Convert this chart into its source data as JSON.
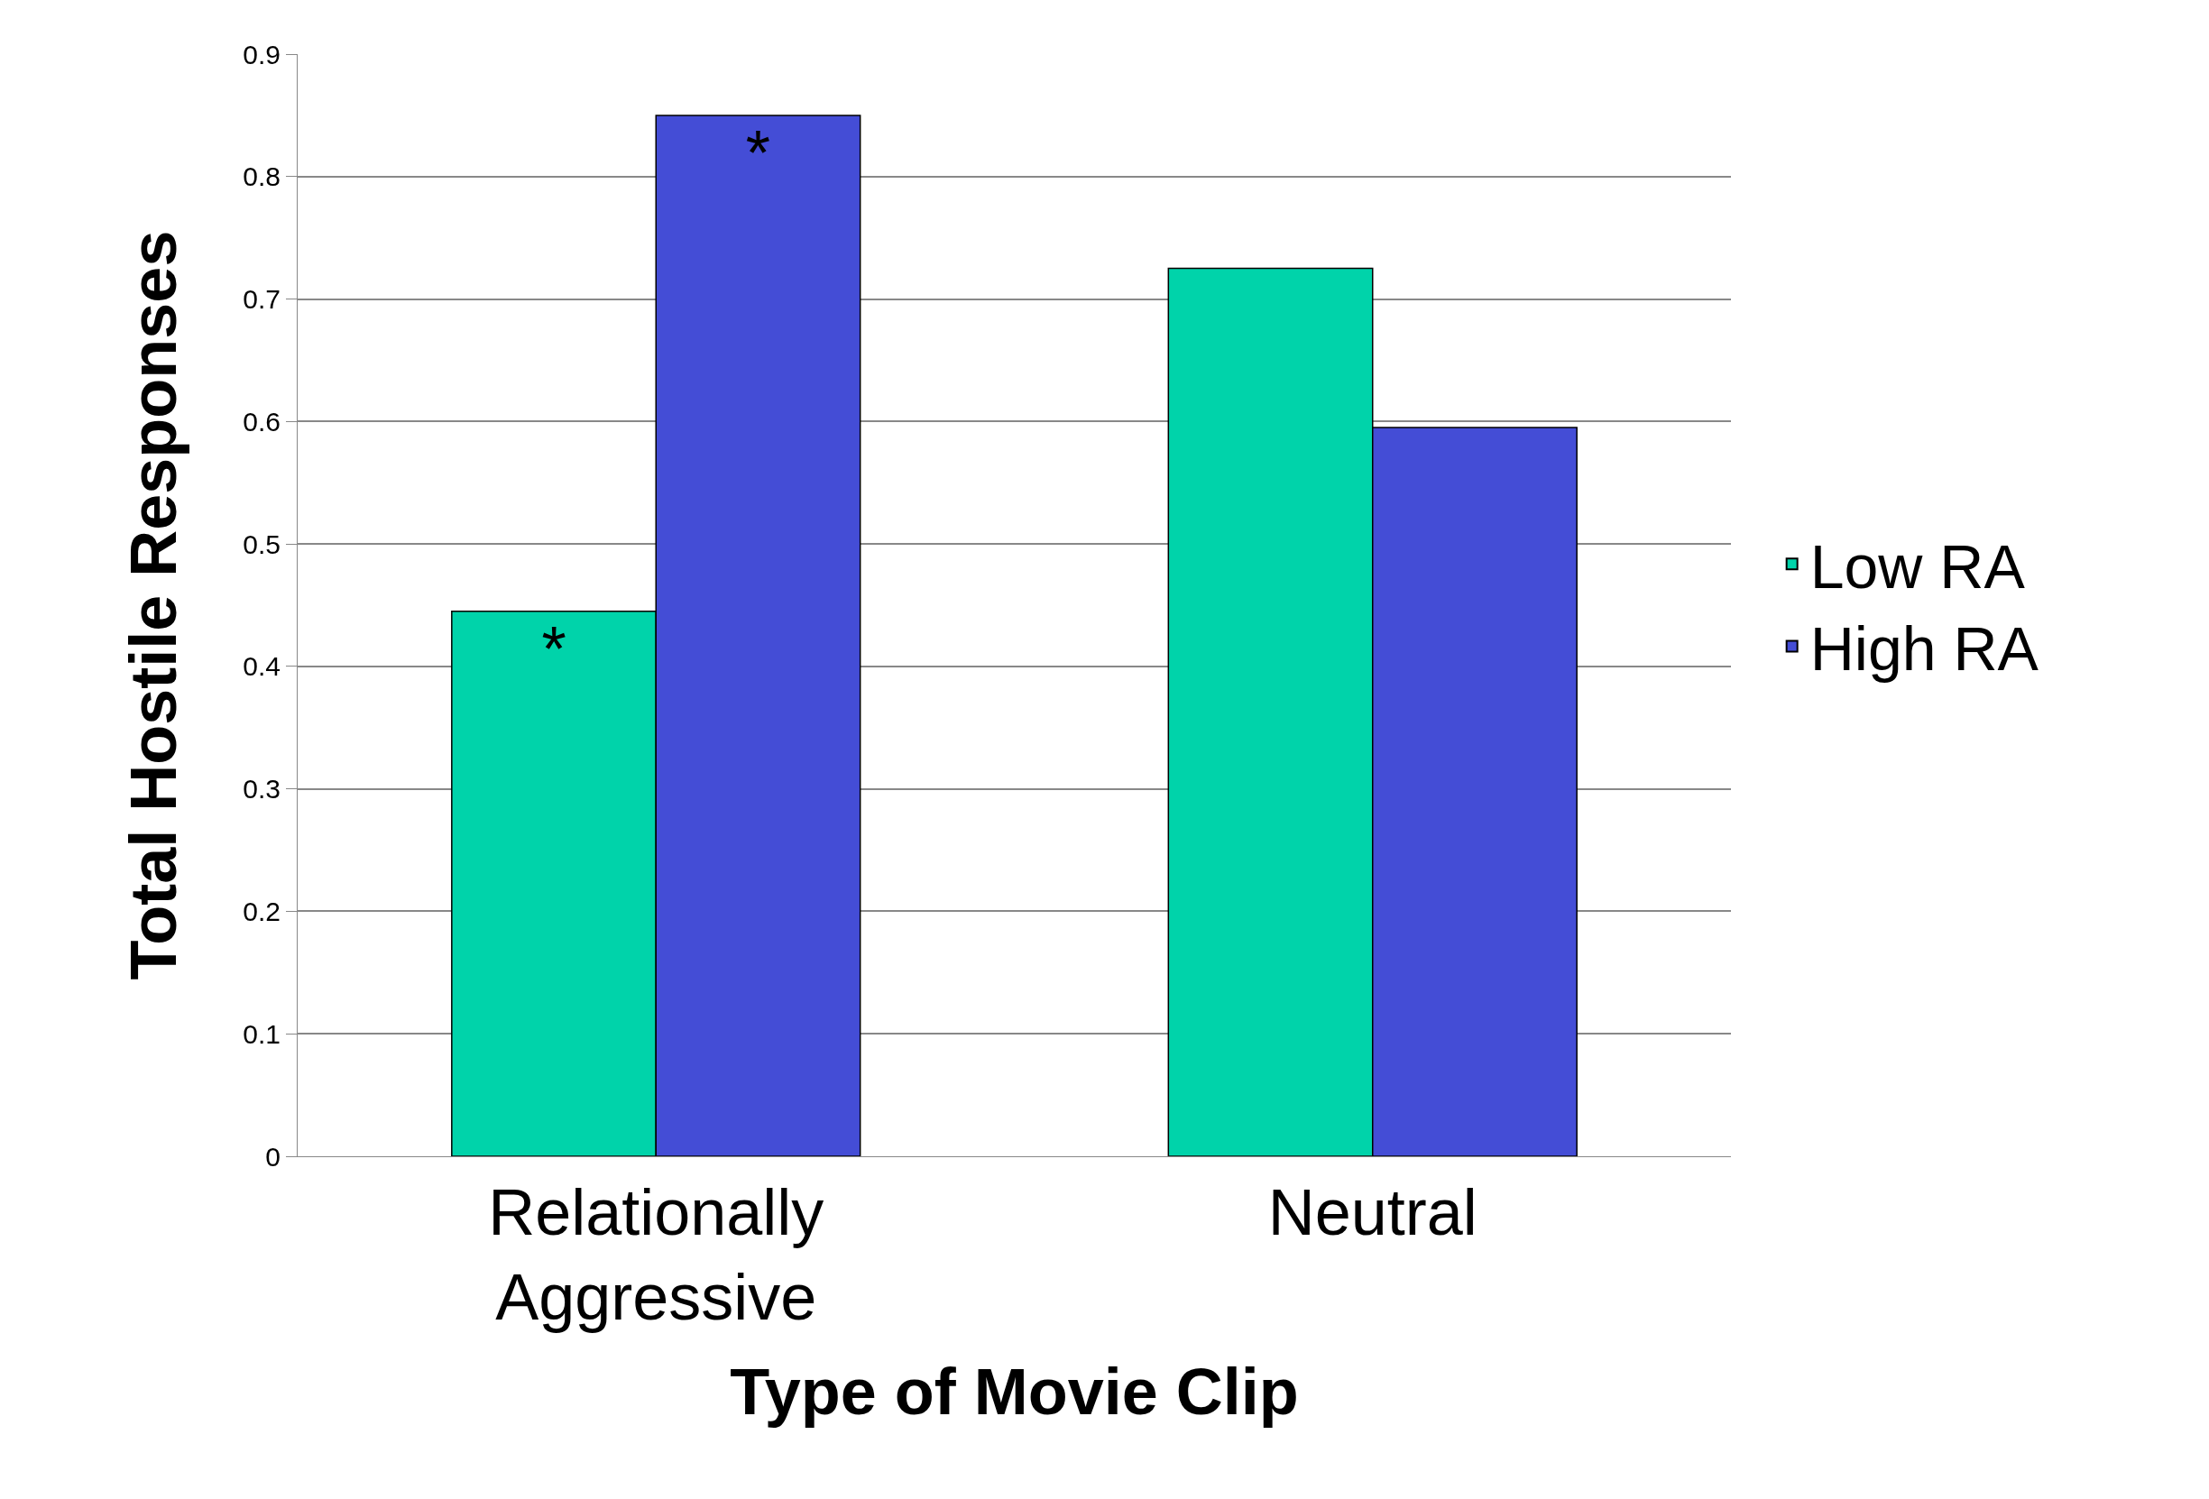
{
  "chart_data": {
    "type": "bar",
    "xlabel": "Type of Movie Clip",
    "ylabel": "Total Hostile Responses",
    "categories": [
      "Relationally Aggressive",
      "Neutral"
    ],
    "series": [
      {
        "name": "Low RA",
        "color": "#00d3aa",
        "values": [
          0.445,
          0.725
        ],
        "value_labels": [
          "*",
          null
        ]
      },
      {
        "name": "High RA",
        "color": "#444dd6",
        "values": [
          0.85,
          0.595
        ],
        "value_labels": [
          "*",
          null
        ]
      }
    ],
    "ylim": [
      0,
      0.9
    ],
    "yticks": [
      0,
      0.1,
      0.2,
      0.3,
      0.4,
      0.5,
      0.6,
      0.7,
      0.8,
      0.9
    ],
    "grid": "y",
    "legend": "right"
  }
}
